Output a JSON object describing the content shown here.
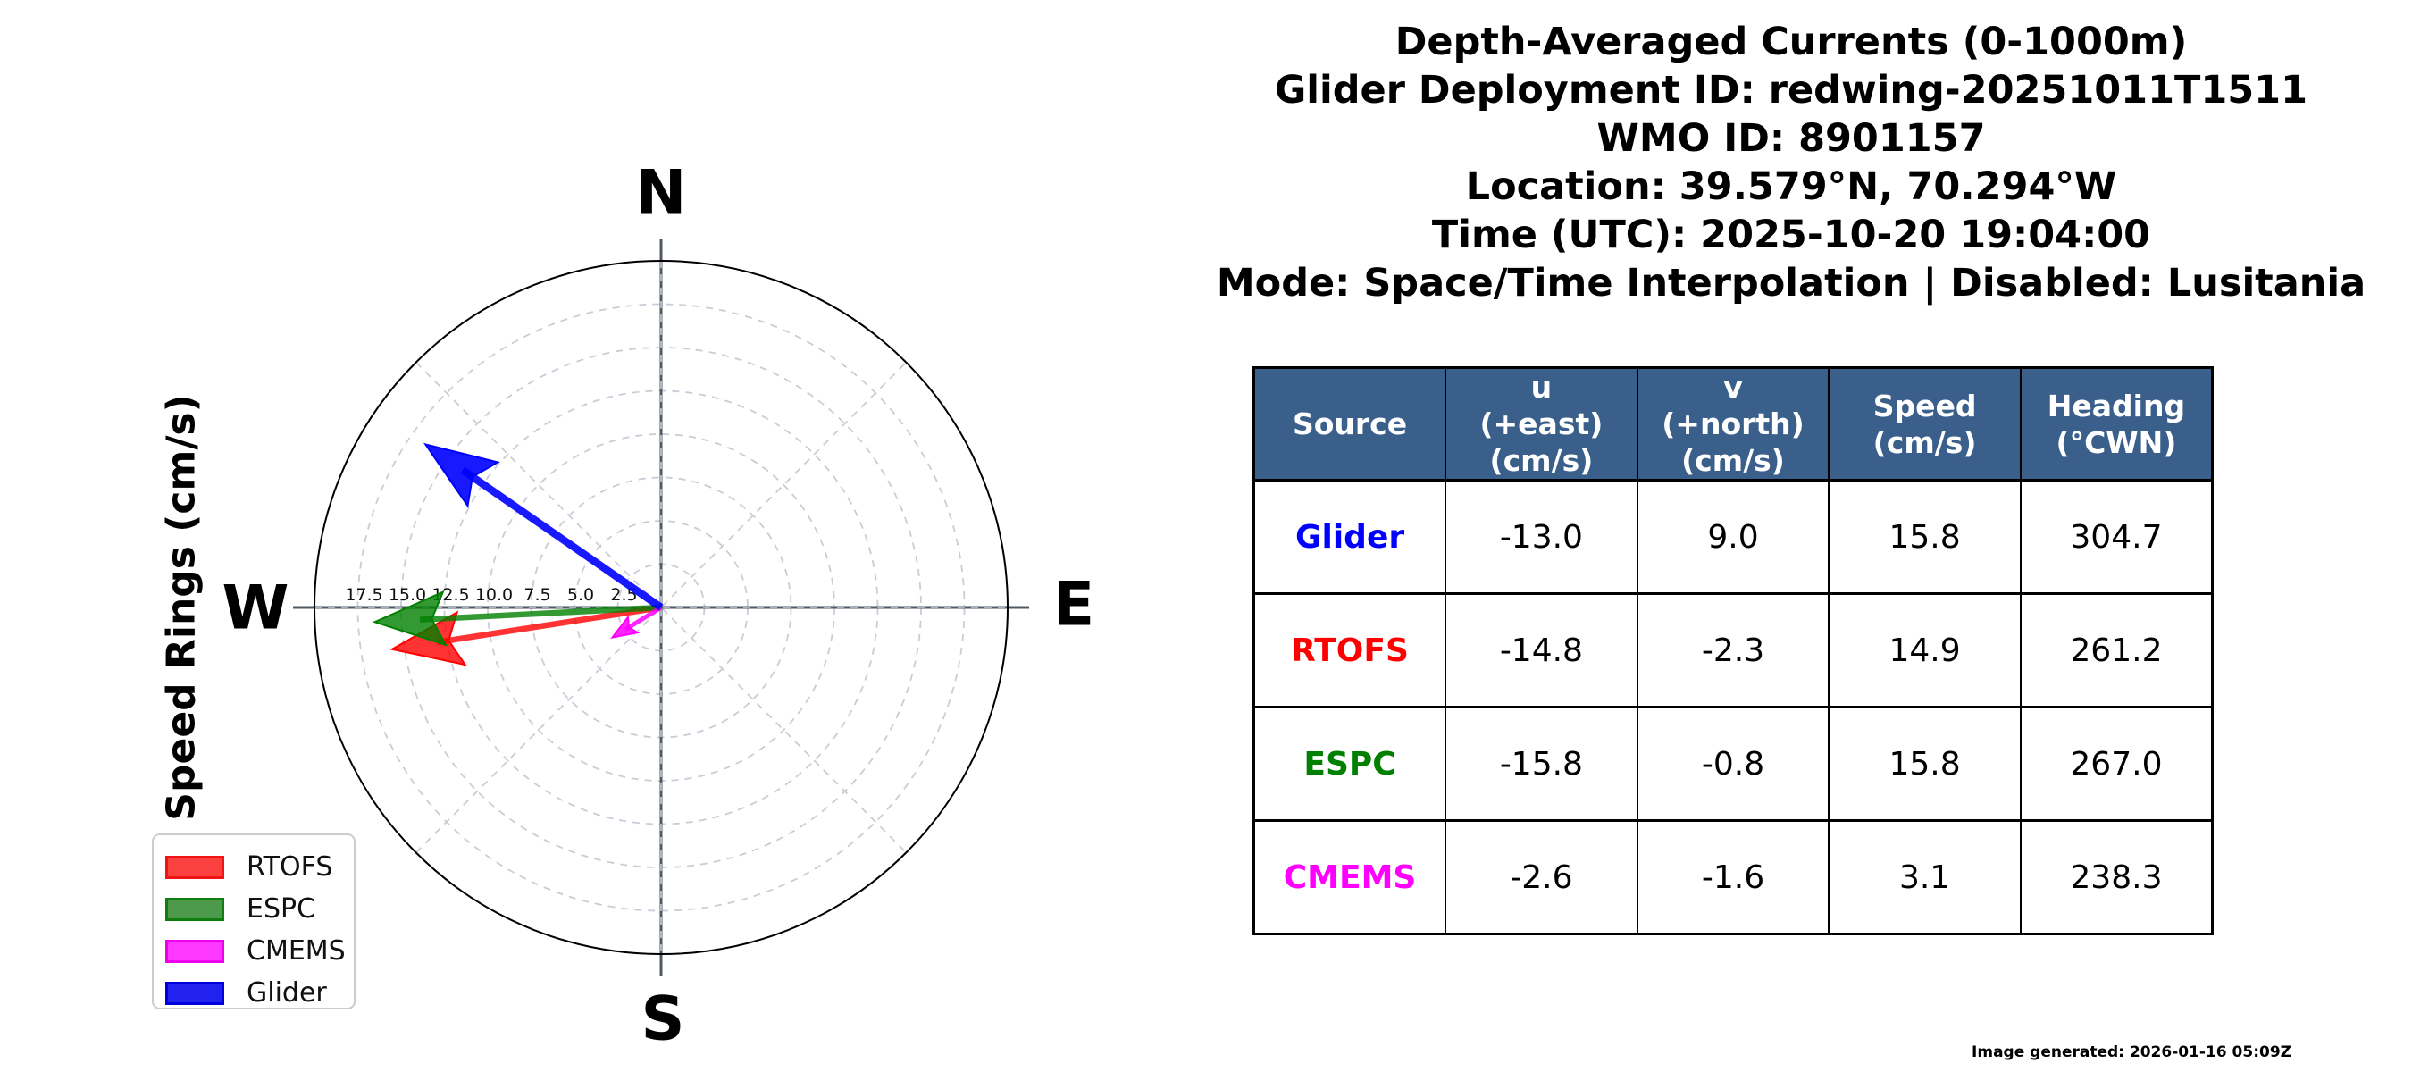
{
  "title_block": {
    "lines": [
      "Depth-Averaged Currents (0-1000m)",
      "Glider Deployment ID: redwing-20251011T1511",
      "WMO ID: 8901157",
      "Location: 39.579°N, 70.294°W",
      "Time (UTC): 2025-10-20 19:04:00",
      "Mode: Space/Time Interpolation | Disabled: Lusitania"
    ]
  },
  "compass": {
    "ylabel": "Speed Rings (cm/s)",
    "cardinal": {
      "north": "N",
      "east": "E",
      "south": "S",
      "west": "W"
    }
  },
  "chart_data": {
    "type": "quiver",
    "subtype": "compass-current-vectors",
    "title": "Depth-Averaged Currents (0-1000m)",
    "ylabel": "Speed Rings (cm/s)",
    "r_max": 20,
    "rings_cm_s": [
      2.5,
      5.0,
      7.5,
      10.0,
      12.5,
      15.0,
      17.5
    ],
    "ring_labels": [
      "17.5",
      "15.0",
      "12.5",
      "10.0",
      "7.5",
      "5.0",
      "2.5"
    ],
    "grid": "dashed rings + 45-degree diagonals, solid gray N-S and E-W axes",
    "series": [
      {
        "name": "RTOFS",
        "u": -14.8,
        "v": -2.3,
        "speed": 14.9,
        "heading_cwn": 261.2,
        "edge": "#ff0000",
        "fill": "rgba(255,0,0,0.8)",
        "shaft": 6.5
      },
      {
        "name": "ESPC",
        "u": -15.8,
        "v": -0.8,
        "speed": 15.8,
        "heading_cwn": 267.0,
        "edge": "#008000",
        "fill": "rgba(0,128,0,0.8)",
        "shaft": 6.5
      },
      {
        "name": "CMEMS",
        "u": -2.6,
        "v": -1.6,
        "speed": 3.1,
        "heading_cwn": 238.3,
        "edge": "#ff00ff",
        "fill": "rgba(255,0,255,0.85)",
        "shaft": 5
      },
      {
        "name": "Glider",
        "u": -13.0,
        "v": 9.0,
        "speed": 15.8,
        "heading_cwn": 304.7,
        "edge": "#0000ff",
        "fill": "rgba(0,0,255,0.9)",
        "shaft": 8.5
      }
    ]
  },
  "legend": {
    "items": [
      {
        "label": "RTOFS",
        "fill": "#fb4040",
        "edge": "#f01414"
      },
      {
        "label": "ESPC",
        "fill": "#4d9a4d",
        "edge": "#0f7d0f"
      },
      {
        "label": "CMEMS",
        "fill": "#ff38ff",
        "edge": "#ee00ee"
      },
      {
        "label": "Glider",
        "fill": "#2222f0",
        "edge": "#0000dd"
      }
    ]
  },
  "table": {
    "columns": [
      "Source",
      "u\n(+east)\n(cm/s)",
      "v\n(+north)\n(cm/s)",
      "Speed\n(cm/s)",
      "Heading\n(°CWN)"
    ],
    "rows": [
      {
        "source": "Glider",
        "color": "#0000ff",
        "values": [
          "-13.0",
          "9.0",
          "15.8",
          "304.7"
        ]
      },
      {
        "source": "RTOFS",
        "color": "#ff0000",
        "values": [
          "-14.8",
          "-2.3",
          "14.9",
          "261.2"
        ]
      },
      {
        "source": "ESPC",
        "color": "#008000",
        "values": [
          "-15.8",
          "-0.8",
          "15.8",
          "267.0"
        ]
      },
      {
        "source": "CMEMS",
        "color": "#ff00ff",
        "values": [
          "-2.6",
          "-1.6",
          "3.1",
          "238.3"
        ]
      }
    ]
  },
  "footer": {
    "generated": "Image generated: 2026-01-16 05:09Z"
  },
  "colors": {
    "header_bg": "#3a5f8a",
    "grid_light": "#c9cdd7",
    "axis_gray": "#4f5a63",
    "circle_edge": "#000000"
  }
}
